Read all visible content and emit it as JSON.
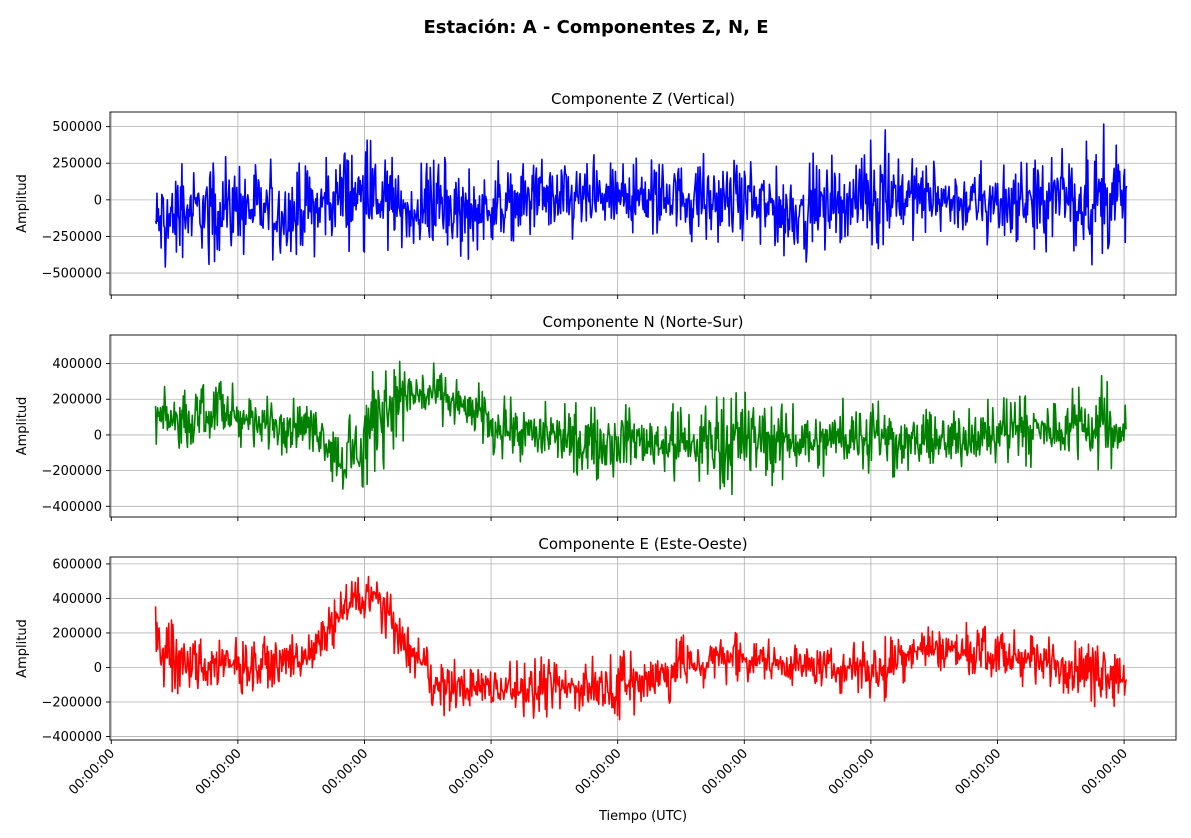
{
  "figure_title": "Estación: A - Componentes Z, N, E",
  "colors": {
    "z": "#0000ff",
    "n": "#008000",
    "e": "#ff0000",
    "grid": "#b0b0b0"
  },
  "chart_data": [
    {
      "type": "line",
      "title": "Componente Z (Vertical)",
      "ylabel": "Amplitud",
      "xlabel": "",
      "color": "#0000ff",
      "ylim": [
        -650000,
        600000
      ],
      "yticks": [
        500000,
        250000,
        0,
        -250000,
        -500000
      ],
      "ytick_labels": [
        "500000",
        "250000",
        "0",
        "−250000",
        "−500000"
      ],
      "grid": true,
      "series": [
        {
          "x": [
            0,
            0.25,
            0.5,
            0.75,
            1,
            1.25,
            1.5,
            1.75,
            2,
            2.25,
            2.5,
            2.75,
            3,
            3.25,
            3.5,
            3.75,
            4,
            4.25,
            4.5,
            4.75,
            5,
            5.25,
            5.5,
            5.75,
            6,
            6.25,
            6.5,
            6.75,
            7,
            7.25,
            7.5,
            7.67
          ],
          "envelope_min": [
            -580000,
            -470000,
            -430000,
            -440000,
            -470000,
            -390000,
            -420000,
            -360000,
            -390000,
            -380000,
            -420000,
            -350000,
            -300000,
            -330000,
            -300000,
            -280000,
            -280000,
            -300000,
            -340000,
            -350000,
            -480000,
            -380000,
            -330000,
            -370000,
            -330000,
            -300000,
            -360000,
            -350000,
            -430000,
            -350000,
            -540000,
            -300000
          ],
          "envelope_max": [
            240000,
            320000,
            300000,
            330000,
            290000,
            250000,
            510000,
            380000,
            220000,
            300000,
            260000,
            290000,
            300000,
            340000,
            310000,
            310000,
            360000,
            330000,
            300000,
            310000,
            300000,
            330000,
            300000,
            510000,
            370000,
            300000,
            290000,
            320000,
            350000,
            400000,
            540000,
            380000
          ]
        }
      ]
    },
    {
      "type": "line",
      "title": "Componente N (Norte-Sur)",
      "ylabel": "Amplitud",
      "xlabel": "",
      "color": "#008000",
      "ylim": [
        -460000,
        560000
      ],
      "yticks": [
        400000,
        200000,
        0,
        -200000,
        -400000
      ],
      "ytick_labels": [
        "400000",
        "200000",
        "0",
        "−200000",
        "−400000"
      ],
      "grid": true,
      "series": [
        {
          "x": [
            0,
            0.25,
            0.5,
            0.75,
            1,
            1.25,
            1.5,
            1.75,
            2,
            2.25,
            2.5,
            2.75,
            3,
            3.25,
            3.5,
            3.75,
            4,
            4.25,
            4.5,
            4.75,
            5,
            5.25,
            5.5,
            5.75,
            6,
            6.25,
            6.5,
            6.75,
            7,
            7.25,
            7.5,
            7.67
          ],
          "envelope_min": [
            -100000,
            -120000,
            -60000,
            -100000,
            -150000,
            -100000,
            -390000,
            -280000,
            0,
            50000,
            -50000,
            -150000,
            -200000,
            -230000,
            -260000,
            -250000,
            -260000,
            -300000,
            -330000,
            -350000,
            -250000,
            -240000,
            -220000,
            -240000,
            -250000,
            -260000,
            -180000,
            -200000,
            -180000,
            -180000,
            -230000,
            -120000
          ],
          "envelope_max": [
            300000,
            250000,
            340000,
            230000,
            280000,
            200000,
            50000,
            520000,
            460000,
            400000,
            300000,
            260000,
            200000,
            180000,
            200000,
            190000,
            180000,
            170000,
            250000,
            310000,
            200000,
            180000,
            230000,
            230000,
            150000,
            180000,
            200000,
            220000,
            240000,
            270000,
            350000,
            160000
          ]
        }
      ]
    },
    {
      "type": "line",
      "title": "Componente E (Este-Oeste)",
      "ylabel": "Amplitud",
      "xlabel": "Tiempo (UTC)",
      "color": "#ff0000",
      "ylim": [
        -420000,
        640000
      ],
      "yticks": [
        600000,
        400000,
        200000,
        0,
        -200000,
        -400000
      ],
      "ytick_labels": [
        "600000",
        "400000",
        "200000",
        "0",
        "−200000",
        "−400000"
      ],
      "grid": true,
      "series": [
        {
          "x": [
            0,
            0.25,
            0.5,
            0.75,
            1,
            1.25,
            1.5,
            1.75,
            2,
            2.25,
            2.5,
            2.75,
            3,
            3.25,
            3.5,
            3.75,
            4,
            4.25,
            4.5,
            4.75,
            5,
            5.25,
            5.5,
            5.75,
            6,
            6.25,
            6.5,
            6.75,
            7,
            7.25,
            7.5,
            7.67
          ],
          "envelope_min": [
            -100000,
            -200000,
            -180000,
            -160000,
            -120000,
            -50000,
            200000,
            230000,
            -50000,
            -300000,
            -270000,
            -280000,
            -330000,
            -300000,
            -290000,
            -310000,
            -250000,
            -150000,
            -100000,
            -80000,
            -120000,
            -150000,
            -180000,
            -200000,
            -60000,
            -60000,
            -100000,
            -120000,
            -140000,
            -200000,
            -260000,
            -200000
          ],
          "envelope_max": [
            360000,
            220000,
            200000,
            180000,
            190000,
            230000,
            480000,
            600000,
            250000,
            40000,
            60000,
            40000,
            80000,
            60000,
            70000,
            120000,
            170000,
            200000,
            220000,
            180000,
            160000,
            160000,
            150000,
            200000,
            280000,
            270000,
            260000,
            220000,
            220000,
            200000,
            230000,
            100000
          ]
        }
      ]
    }
  ],
  "xaxis": {
    "tick_labels": [
      "00:00:00",
      "00:00:00",
      "00:00:00",
      "00:00:00",
      "00:00:00",
      "00:00:00",
      "00:00:00",
      "00:00:00",
      "00:00:00"
    ],
    "tick_values": [
      -0.35,
      0.65,
      1.65,
      2.65,
      3.65,
      4.65,
      5.65,
      6.65,
      7.65
    ],
    "xlim": [
      -0.36,
      8.06
    ],
    "label": "Tiempo (UTC)"
  }
}
